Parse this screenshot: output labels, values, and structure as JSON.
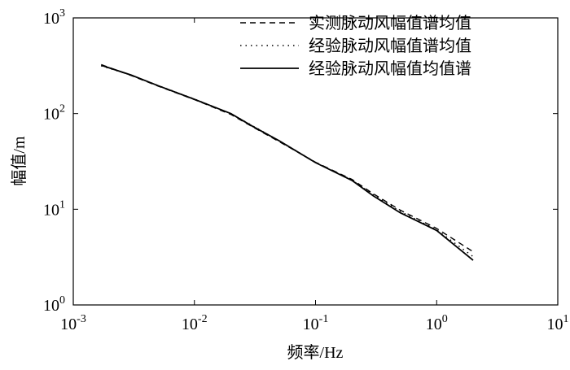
{
  "chart_data": {
    "type": "line",
    "x_label": "频率/Hz",
    "y_label": "幅值/m",
    "log_x": true,
    "log_y": true,
    "xlim": [
      0.001,
      10
    ],
    "ylim": [
      1,
      1000
    ],
    "xticks": [
      {
        "value": 0.001,
        "label": "10",
        "exponent": "-3"
      },
      {
        "value": 0.01,
        "label": "10",
        "exponent": "-2"
      },
      {
        "value": 0.1,
        "label": "10",
        "exponent": "-1"
      },
      {
        "value": 1,
        "label": "10",
        "exponent": "0"
      },
      {
        "value": 10,
        "label": "10",
        "exponent": "1"
      }
    ],
    "yticks": [
      {
        "value": 1,
        "label": "10",
        "exponent": "0"
      },
      {
        "value": 10,
        "label": "10",
        "exponent": "1"
      },
      {
        "value": 100,
        "label": "10",
        "exponent": "2"
      },
      {
        "value": 1000,
        "label": "10",
        "exponent": "3"
      }
    ],
    "legend": "upper right",
    "x": [
      0.0017,
      0.003,
      0.005,
      0.01,
      0.02,
      0.03,
      0.05,
      0.1,
      0.2,
      0.3,
      0.5,
      1,
      2
    ],
    "series": [
      {
        "name": "实测脉动风幅值谱均值",
        "color": "#000000",
        "dash": "dashed",
        "values": [
          325,
          250,
          194,
          140,
          98,
          73,
          51,
          31,
          20.5,
          14.5,
          9.8,
          6.3,
          3.6
        ]
      },
      {
        "name": "经验脉动风幅值谱均值",
        "color": "#000000",
        "dash": "dotted",
        "values": [
          315,
          252,
          197,
          142,
          100,
          75,
          52,
          31,
          20.2,
          14.2,
          9.5,
          6.1,
          3.2
        ]
      },
      {
        "name": "经验脉动风幅值均值谱",
        "color": "#000000",
        "dash": "solid",
        "values": [
          320,
          253,
          196,
          141,
          100,
          74,
          52,
          30.7,
          20,
          13.8,
          9.2,
          6.0,
          2.93
        ]
      }
    ]
  }
}
